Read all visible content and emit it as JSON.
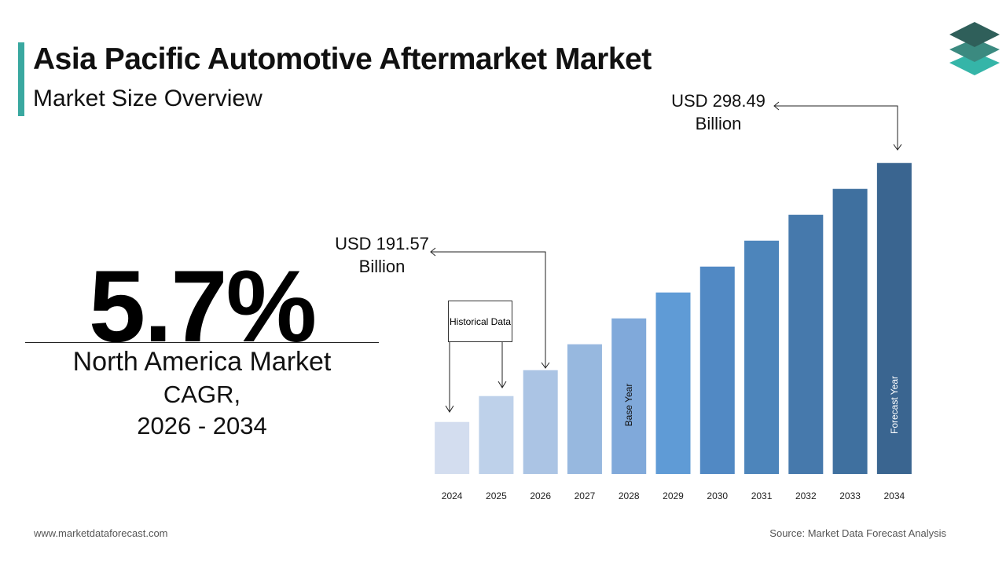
{
  "chart_data": {
    "type": "bar",
    "title": "Asia Pacific Automotive Aftermarket Market",
    "subtitle": "Market Size Overview",
    "categories": [
      "2024",
      "2025",
      "2026",
      "2027",
      "2028",
      "2029",
      "2030",
      "2031",
      "2032",
      "2033",
      "2034"
    ],
    "values": [
      164.84,
      178.21,
      191.57,
      204.94,
      218.3,
      231.67,
      245.03,
      258.4,
      271.76,
      285.13,
      298.49
    ],
    "value_labels": [
      null,
      null,
      "USD 191.57 Billion",
      null,
      null,
      null,
      null,
      null,
      null,
      null,
      "USD 298.49 Billion"
    ],
    "colors": [
      "#d3ddef",
      "#bed1ea",
      "#abc4e4",
      "#97b8df",
      "#80a9da",
      "#5f9bd6",
      "#5189c4",
      "#4d85bb",
      "#4679ac",
      "#3f709f",
      "#3a6590"
    ],
    "ylim": [
      138,
      300
    ],
    "annotations": {
      "historical": "Historical Data",
      "base_year": "Base Year",
      "forecast_year": "Forecast Year"
    },
    "kpi": {
      "value": "5.7%",
      "caption": [
        "North America Market",
        "CAGR,",
        "2026 - 2034"
      ]
    },
    "footer": {
      "website": "www.marketdataforecast.com",
      "source": "Source: Market Data Forecast Analysis"
    }
  }
}
